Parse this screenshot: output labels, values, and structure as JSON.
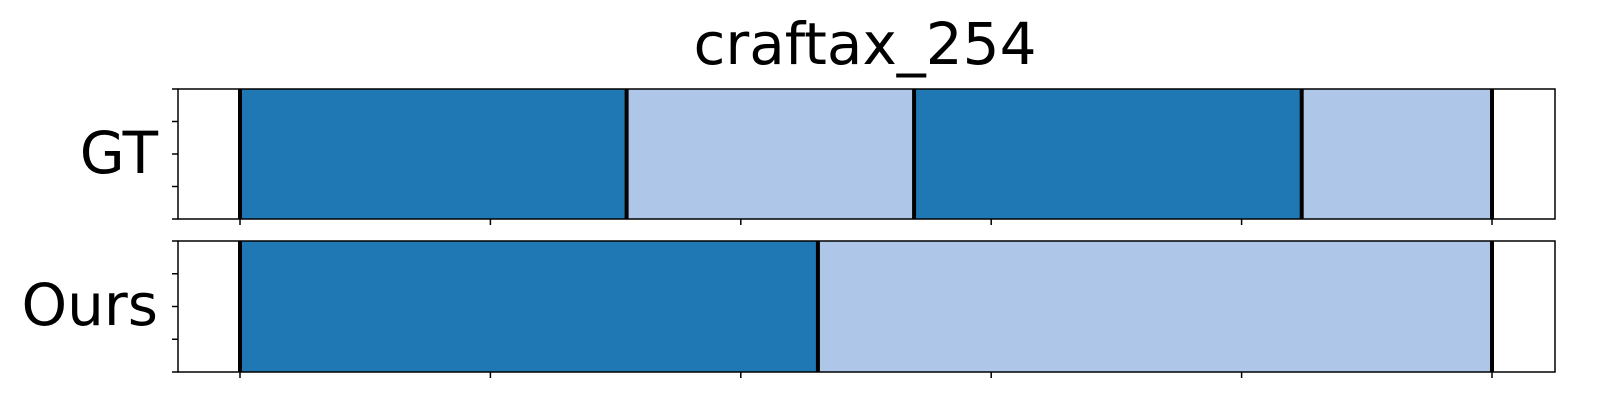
{
  "chart_data": {
    "type": "bar",
    "title": "craftax_254",
    "xlabel": "",
    "ylabel": "",
    "xlim": [
      0,
      1250
    ],
    "grid": false,
    "legend": "none",
    "colors": {
      "dark": "#1f77b4",
      "light": "#aec7e8",
      "boundary": "#000000",
      "axis": "#000000"
    },
    "rows": [
      {
        "label": "GT",
        "segments": [
          {
            "start": 0,
            "end": 386,
            "color": "dark"
          },
          {
            "start": 386,
            "end": 673,
            "color": "light"
          },
          {
            "start": 673,
            "end": 1060,
            "color": "dark"
          },
          {
            "start": 1060,
            "end": 1250,
            "color": "light"
          }
        ],
        "boundaries": [
          0,
          386,
          673,
          1060,
          1250
        ]
      },
      {
        "label": "Ours",
        "segments": [
          {
            "start": 0,
            "end": 577,
            "color": "dark"
          },
          {
            "start": 577,
            "end": 1250,
            "color": "light"
          }
        ],
        "boundaries": [
          0,
          577,
          1250
        ]
      }
    ],
    "x_ticks": [
      0,
      250,
      500,
      750,
      1000,
      1250
    ],
    "y_tick_count": 5
  }
}
